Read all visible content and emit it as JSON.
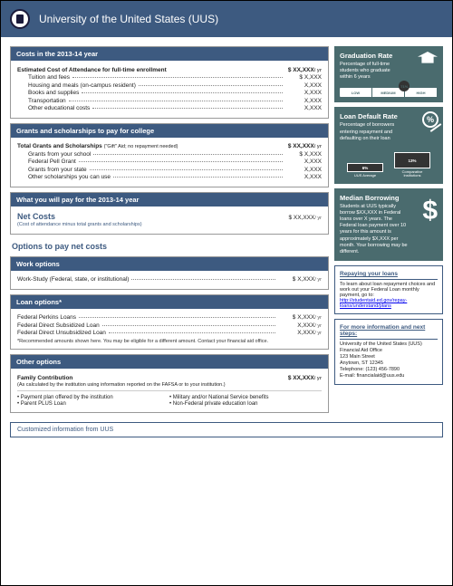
{
  "header": {
    "title": "University of the United States (UUS)"
  },
  "costs": {
    "hd": "Costs in the 2013-14 year",
    "total_lbl": "Estimated Cost of Attendance for full-time enrollment",
    "total": "$  XX,XXX",
    "yr": "/ yr",
    "items": [
      {
        "l": "Tuition and fees",
        "v": "$  X,XXX"
      },
      {
        "l": "Housing and meals (on-campus resident)",
        "v": "X,XXX"
      },
      {
        "l": "Books and supplies",
        "v": "X,XXX"
      },
      {
        "l": "Transportation",
        "v": "X,XXX"
      },
      {
        "l": "Other educational costs",
        "v": "X,XXX"
      }
    ]
  },
  "grants": {
    "hd": "Grants and scholarships to pay for college",
    "total_lbl": "Total Grants and Scholarships",
    "total_sub": "(\"Gift\" Aid; no repayment needed)",
    "total": "$  XX,XXX",
    "items": [
      {
        "l": "Grants from your school",
        "v": "$  X,XXX"
      },
      {
        "l": "Federal Pell Grant",
        "v": "X,XXX"
      },
      {
        "l": "Grants from your state",
        "v": "X,XXX"
      },
      {
        "l": "Other scholarships you can use",
        "v": "X,XXX"
      }
    ]
  },
  "net": {
    "hd": "What you will pay for the 2013-14 year",
    "lbl": "Net Costs",
    "sub": "(Cost of attendance minus total grants and scholarships)",
    "val": "$  XX,XXX"
  },
  "opts_title": "Options to pay net costs",
  "work": {
    "hd": "Work options",
    "items": [
      {
        "l": "Work-Study (Federal, state, or institutional)",
        "v": "$  X,XXX"
      }
    ]
  },
  "loan": {
    "hd": "Loan options*",
    "items": [
      {
        "l": "Federal Perkins Loans",
        "v": "$  X,XXX"
      },
      {
        "l": "Federal Direct Subsidized Loan",
        "v": "X,XXX"
      },
      {
        "l": "Federal Direct Unsubsidized Loan",
        "v": "X,XXX"
      }
    ],
    "note": "*Recommended amounts shown here. You may be eligible for a different amount. Contact your financial aid office."
  },
  "other": {
    "hd": "Other options",
    "fam_lbl": "Family Contribution",
    "fam_sub": "(As calculated by the institution using information reported on the FAFSA or to your institution.)",
    "fam_val": "$  XX,XXX",
    "col1": [
      "Payment plan offered by the institution",
      "Parent PLUS Loan"
    ],
    "col2": [
      "Military and/or National Service benefits",
      "Non-Federal private education loan"
    ]
  },
  "grad": {
    "tt": "Graduation Rate",
    "txt": "Percentage of full-time students who graduate within 6 years",
    "pct": "71%",
    "pct_pos": 66,
    "low": "LOW",
    "med": "MEDIUM",
    "high": "HIGH"
  },
  "default": {
    "tt": "Loan Default Rate",
    "txt": "Percentage of borrowers entering repayment and defaulting on their loan",
    "b1": {
      "v": "6%",
      "h": 10,
      "l": "UUS Average"
    },
    "b2": {
      "v": "13%",
      "h": 18,
      "l": "Comparative Institutions"
    }
  },
  "median": {
    "tt": "Median Borrowing",
    "txt": "Students at UUS typically borrow $XX,XXX in Federal loans over X years. The Federal loan payment over 10 years for this amount is approximately $X,XXX per month. Your borrowing may be different."
  },
  "repay": {
    "tt": "Repaying your loans",
    "txt": "To learn about loan repayment choices and work out your Federal Loan monthly payment, go to: ",
    "link": "http://studentaid.ed.gov/repay-loans/understand/plans"
  },
  "more": {
    "tt": "For more information and next steps:",
    "lines": [
      "University of the United States (UUS)",
      "Financial Aid Office",
      "123 Main Street",
      "Anytown, ST 12345",
      "Telephone: (123) 456-7890",
      "E-mail: financialaid@uus.edu"
    ]
  },
  "footer": "Customized information from UUS"
}
